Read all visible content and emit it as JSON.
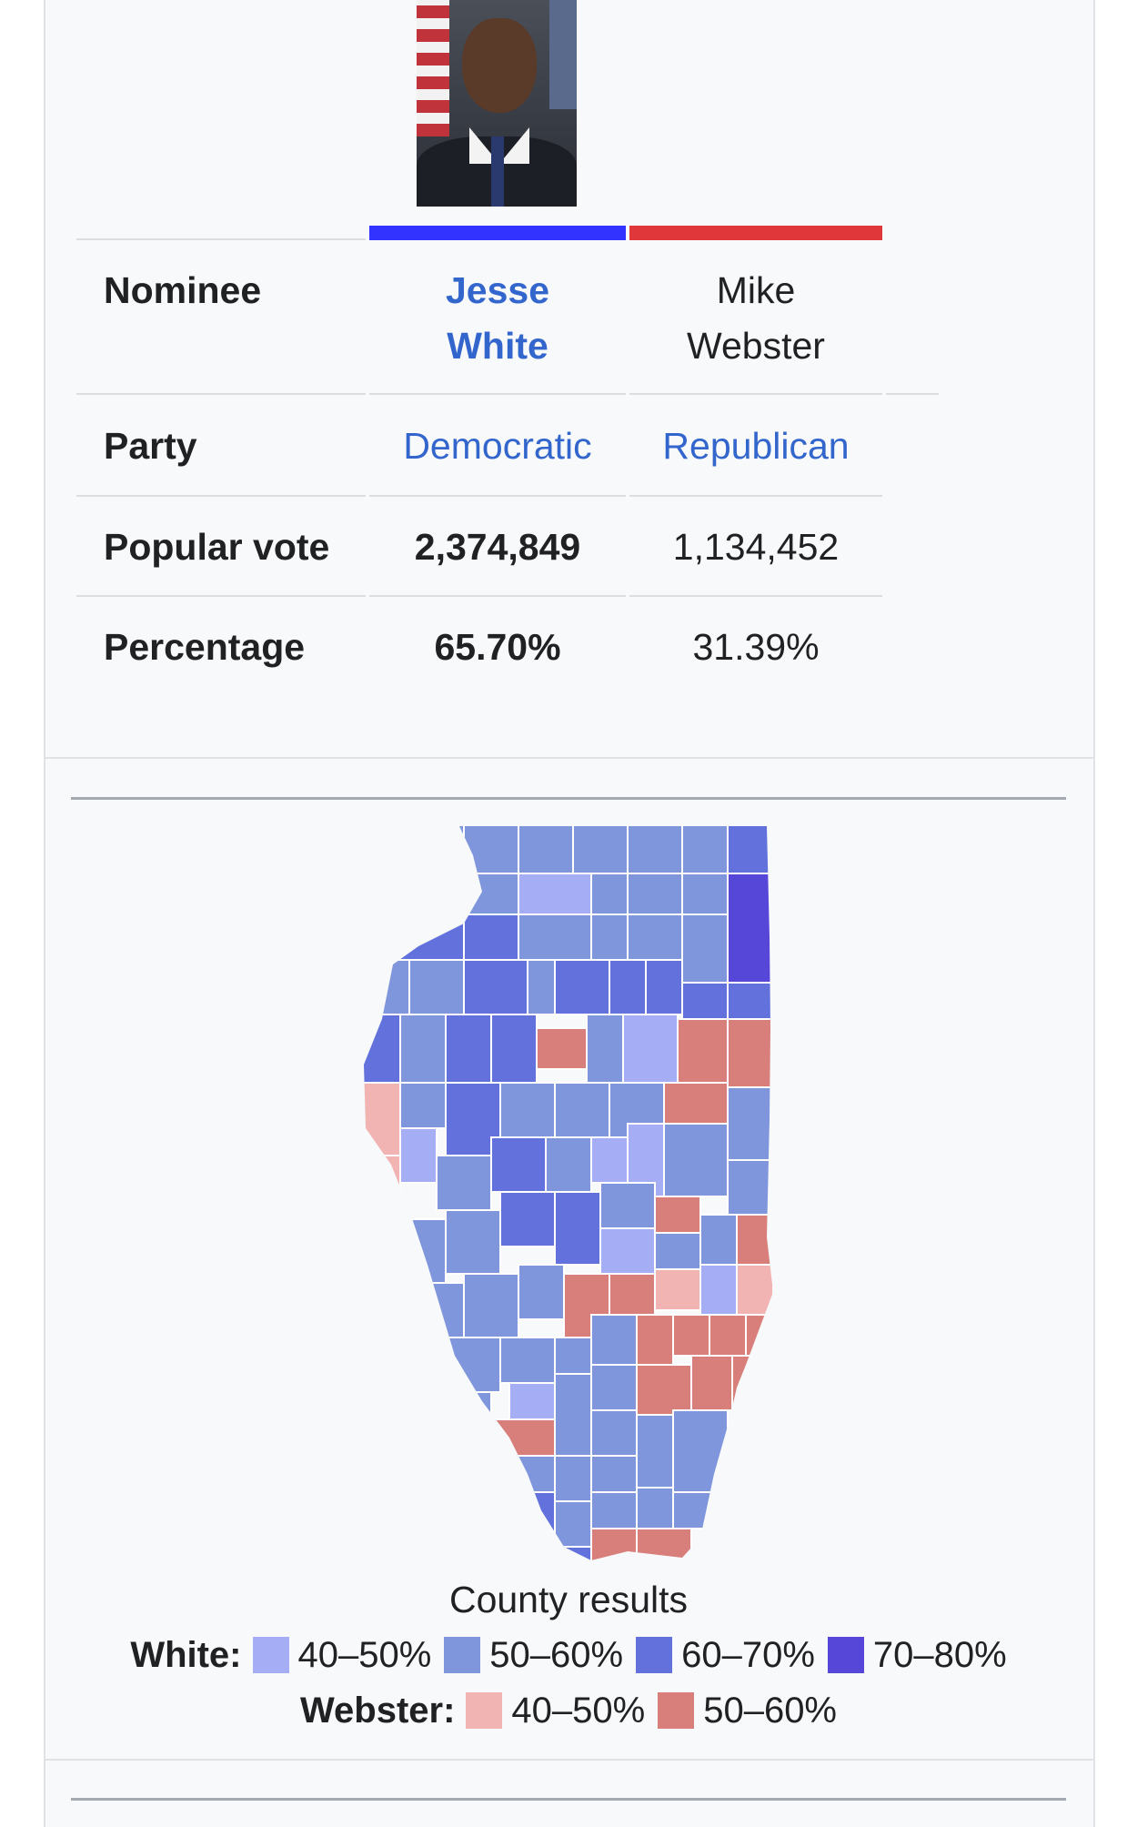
{
  "candidates": [
    {
      "name_line1": "Jesse",
      "name_line2": "White",
      "party": "Democratic",
      "popular_vote": "2,374,849",
      "percentage": "65.70%"
    },
    {
      "name_line1": "Mike",
      "name_line2": "Webster",
      "party": "Republican",
      "popular_vote": "1,134,452",
      "percentage": "31.39%"
    }
  ],
  "rows": {
    "nominee": "Nominee",
    "party": "Party",
    "popular_vote": "Popular vote",
    "percentage": "Percentage"
  },
  "colors": {
    "democratic": "#3333ff",
    "republican": "#e0383a",
    "white_40_50": "#a5adf5",
    "white_50_60": "#7f96dc",
    "white_60_70": "#6271db",
    "white_70_80": "#5747d8",
    "webster_40_50": "#f2b3b3",
    "webster_50_60": "#d87f7c"
  },
  "map": {
    "caption": "County results",
    "legend_white_title": "White:",
    "legend_webster_title": "Webster:",
    "legend_white": [
      "40–50%",
      "50–60%",
      "60–70%",
      "70–80%"
    ],
    "legend_webster": [
      "40–50%",
      "50–60%"
    ]
  },
  "photo_icon": "candidate-photo-icon"
}
